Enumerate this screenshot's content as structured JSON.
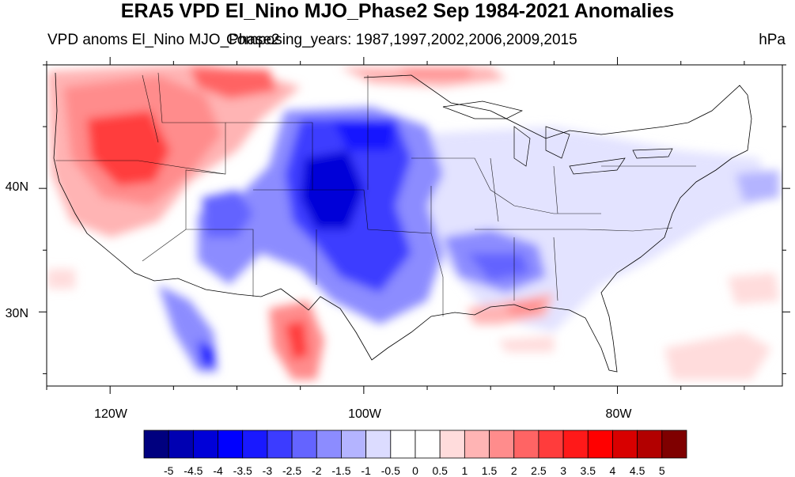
{
  "title": "ERA5 VPD El_Nino MJO_Phase2 Sep 1984-2021 Anomalies",
  "subtitle_left": "VPD anoms El_Nino MJO_Phase2",
  "subtitle_center": "Composing_years: 1987,1997,2002,2006,2009,2015",
  "units": "hPa",
  "chart_data": {
    "type": "heatmap",
    "variable": "VPD anomaly",
    "units": "hPa",
    "lon_range": [
      -125,
      -67
    ],
    "lat_range": [
      24,
      50
    ],
    "x_ticks": [
      {
        "lon": -120,
        "label": "120W"
      },
      {
        "lon": -100,
        "label": "100W"
      },
      {
        "lon": -80,
        "label": "80W"
      }
    ],
    "y_ticks": [
      {
        "lat": 30,
        "label": "30N"
      },
      {
        "lat": 40,
        "label": "40N"
      }
    ],
    "colorbar_levels": [
      "-5",
      "-4.5",
      "-4",
      "-3.5",
      "-3",
      "-2.5",
      "-2",
      "-1.5",
      "-1",
      "-0.5",
      "0",
      "0.5",
      "1",
      "1.5",
      "2",
      "2.5",
      "3",
      "3.5",
      "4",
      "4.5",
      "5"
    ],
    "colorbar_colors": [
      "#00007f",
      "#0000b2",
      "#0000d8",
      "#0000ff",
      "#1919ff",
      "#3c3cff",
      "#6464ff",
      "#8c8cff",
      "#b4b4ff",
      "#dcdcff",
      "#ffffff",
      "#ffffff",
      "#ffdcdc",
      "#ffb4b4",
      "#ff8c8c",
      "#ff6464",
      "#ff3c3c",
      "#ff1919",
      "#ff0000",
      "#d80000",
      "#b20000",
      "#7f0000"
    ],
    "anomaly_features": [
      {
        "lon": -117.5,
        "lat": 42.5,
        "value": 3.5
      },
      {
        "lon": -112,
        "lat": 47.5,
        "value": 2.5
      },
      {
        "lon": -103.5,
        "lat": 38.5,
        "value": -4.5
      },
      {
        "lon": -101.5,
        "lat": 42,
        "value": -3.5
      },
      {
        "lon": -99,
        "lat": 33.5,
        "value": -3
      },
      {
        "lon": -109.5,
        "lat": 38,
        "value": -2.5
      },
      {
        "lon": -91,
        "lat": 35.5,
        "value": -1.5
      },
      {
        "lon": -105.5,
        "lat": 28,
        "value": 3
      },
      {
        "lon": -112.5,
        "lat": 26.5,
        "value": -3
      },
      {
        "lon": -87,
        "lat": 30.5,
        "value": 1.5
      }
    ]
  }
}
